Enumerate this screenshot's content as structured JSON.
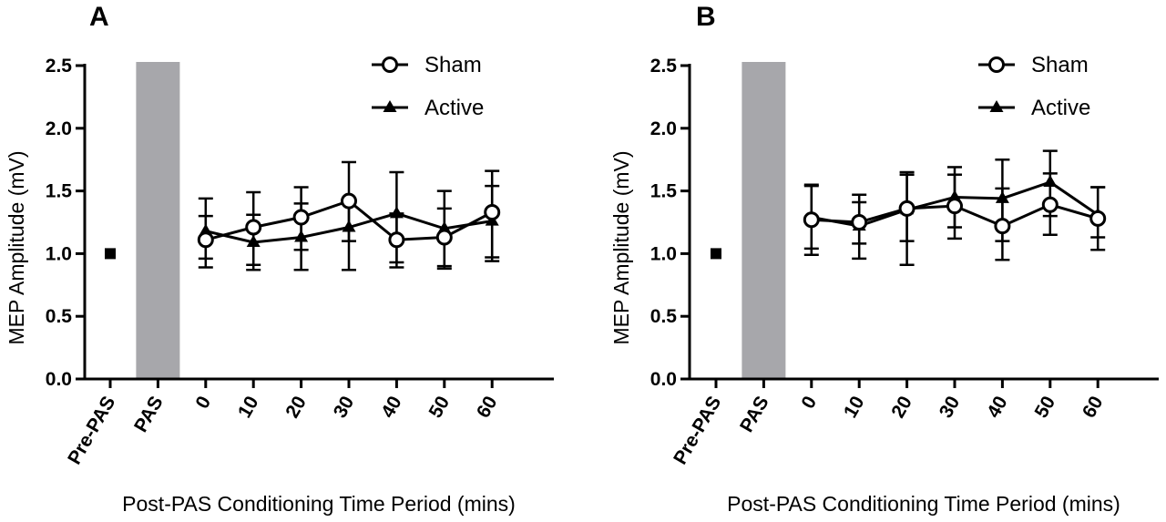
{
  "chart_data": [
    {
      "type": "line",
      "panel": "A",
      "ylabel": "MEP Amplitude  (mV)",
      "xlabel": "Post-PAS Conditioning Time Period  (mins)",
      "ylim": [
        0,
        2.5
      ],
      "yticks": [
        "0.0",
        "0.5",
        "1.0",
        "1.5",
        "2.0",
        "2.5"
      ],
      "categories": [
        "Pre-PAS",
        "PAS",
        "0",
        "10",
        "20",
        "30",
        "40",
        "50",
        "60"
      ],
      "pre_pas": {
        "x": "Pre-PAS",
        "y": 1.0
      },
      "pas_band": {
        "x": "PAS",
        "from": 0,
        "to": 2.5,
        "color": "#a7a7ab"
      },
      "legend_position": "top-right",
      "series": [
        {
          "name": "Sham",
          "marker": "open-circle",
          "x": [
            "0",
            "10",
            "20",
            "30",
            "40",
            "50",
            "60"
          ],
          "y": [
            1.11,
            1.21,
            1.29,
            1.42,
            1.11,
            1.13,
            1.33
          ],
          "err_low": [
            0.89,
            0.91,
            1.03,
            1.1,
            0.89,
            0.88,
            0.94
          ],
          "err_high": [
            1.3,
            1.49,
            1.53,
            1.73,
            1.32,
            1.36,
            1.66
          ]
        },
        {
          "name": "Active",
          "marker": "filled-triangle",
          "x": [
            "0",
            "10",
            "20",
            "30",
            "40",
            "50",
            "60"
          ],
          "y": [
            1.18,
            1.09,
            1.13,
            1.21,
            1.32,
            1.2,
            1.26
          ],
          "err_low": [
            0.96,
            0.87,
            0.87,
            0.87,
            0.93,
            0.9,
            0.97
          ],
          "err_high": [
            1.44,
            1.31,
            1.4,
            1.44,
            1.65,
            1.5,
            1.54
          ]
        }
      ]
    },
    {
      "type": "line",
      "panel": "B",
      "ylabel": "MEP Amplitude  (mV)",
      "xlabel": "Post-PAS Conditioning Time Period  (mins)",
      "ylim": [
        0,
        2.5
      ],
      "yticks": [
        "0.0",
        "0.5",
        "1.0",
        "1.5",
        "2.0",
        "2.5"
      ],
      "categories": [
        "Pre-PAS",
        "PAS",
        "0",
        "10",
        "20",
        "30",
        "40",
        "50",
        "60"
      ],
      "pre_pas": {
        "x": "Pre-PAS",
        "y": 1.0
      },
      "pas_band": {
        "x": "PAS",
        "from": 0,
        "to": 2.5,
        "color": "#a7a7ab"
      },
      "legend_position": "top-right",
      "series": [
        {
          "name": "Sham",
          "marker": "open-circle",
          "x": [
            "0",
            "10",
            "20",
            "30",
            "40",
            "50",
            "60"
          ],
          "y": [
            1.27,
            1.25,
            1.36,
            1.38,
            1.22,
            1.39,
            1.28
          ],
          "err_low": [
            0.99,
            0.96,
            1.1,
            1.12,
            0.95,
            1.15,
            1.03
          ],
          "err_high": [
            1.54,
            1.47,
            1.63,
            1.63,
            1.52,
            1.64,
            1.53
          ]
        },
        {
          "name": "Active",
          "marker": "filled-triangle",
          "x": [
            "0",
            "10",
            "20",
            "30",
            "40",
            "50",
            "60"
          ],
          "y": [
            1.29,
            1.22,
            1.35,
            1.45,
            1.44,
            1.57,
            1.31
          ],
          "err_low": [
            1.04,
            1.08,
            0.91,
            1.21,
            1.1,
            1.3,
            1.13
          ],
          "err_high": [
            1.55,
            1.41,
            1.65,
            1.69,
            1.75,
            1.82,
            1.53
          ]
        }
      ]
    }
  ]
}
